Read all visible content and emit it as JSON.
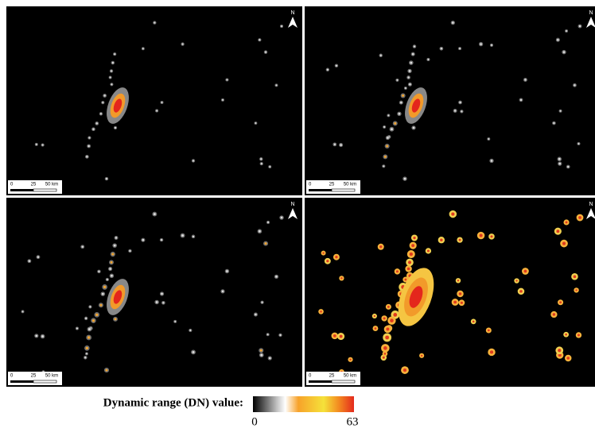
{
  "panels": [
    {
      "north": "N",
      "scale_labels": [
        "0",
        "25",
        "50 km"
      ]
    },
    {
      "north": "N",
      "scale_labels": [
        "0",
        "25",
        "50 km"
      ]
    },
    {
      "north": "N",
      "scale_labels": [
        "0",
        "25",
        "50 km"
      ]
    },
    {
      "north": "N",
      "scale_labels": [
        "0",
        "25",
        "50 km"
      ]
    }
  ],
  "legend": {
    "title": "Dynamic range (DN) value:",
    "min": "0",
    "max": "63"
  }
}
